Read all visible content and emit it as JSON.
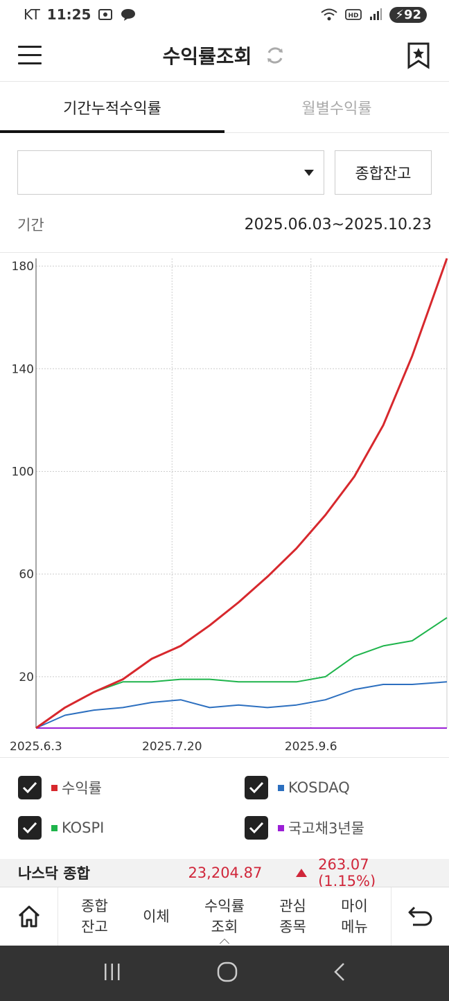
{
  "status_bar": {
    "carrier": "KT",
    "time": "11:25",
    "battery": "92"
  },
  "header": {
    "title": "수익률조회"
  },
  "tabs": [
    {
      "label": "기간누적수익률",
      "active": true
    },
    {
      "label": "월별수익률",
      "active": false
    }
  ],
  "account_select": {
    "value": ""
  },
  "balance_button": {
    "label": "종합잔고"
  },
  "period": {
    "label": "기간",
    "value": "2025.06.03~2025.10.23"
  },
  "chart_data": {
    "type": "line",
    "x_tick_labels": [
      "2025.6.3",
      "2025.7.20",
      "2025.9.6"
    ],
    "y_ticks": [
      20,
      60,
      100,
      140,
      180
    ],
    "ylim": [
      0,
      183
    ],
    "grid": true,
    "legend_position": "bottom",
    "x": [
      "2025-06-03",
      "2025-06-13",
      "2025-06-23",
      "2025-07-03",
      "2025-07-13",
      "2025-07-23",
      "2025-08-02",
      "2025-08-12",
      "2025-08-22",
      "2025-09-01",
      "2025-09-11",
      "2025-09-21",
      "2025-10-01",
      "2025-10-11",
      "2025-10-23"
    ],
    "series": [
      {
        "name": "수익률",
        "color": "#d7282d",
        "values": [
          0,
          8,
          14,
          19,
          27,
          32,
          40,
          49,
          59,
          70,
          83,
          98,
          118,
          145,
          183
        ]
      },
      {
        "name": "KOSPI",
        "color": "#1eb44b",
        "values": [
          0,
          8,
          14,
          18,
          18,
          19,
          19,
          18,
          18,
          18,
          20,
          28,
          32,
          34,
          43
        ]
      },
      {
        "name": "KOSDAQ",
        "color": "#2c6fbf",
        "values": [
          0,
          5,
          7,
          8,
          10,
          11,
          8,
          9,
          8,
          9,
          11,
          15,
          17,
          17,
          18
        ]
      },
      {
        "name": "국고채3년물",
        "color": "#9b1fd6",
        "values": [
          0,
          0,
          0,
          0,
          0,
          0,
          0,
          0,
          0,
          0,
          0,
          0,
          0,
          0,
          0
        ]
      }
    ]
  },
  "ticker": {
    "name": "나스닥 종합",
    "price": "23,204.87",
    "change": "263.07 (1.15%)"
  },
  "bottom_nav": {
    "items": [
      "종합\n잔고",
      "이체",
      "수익률\n조회",
      "관심\n종목",
      "마이\n메뉴"
    ]
  }
}
